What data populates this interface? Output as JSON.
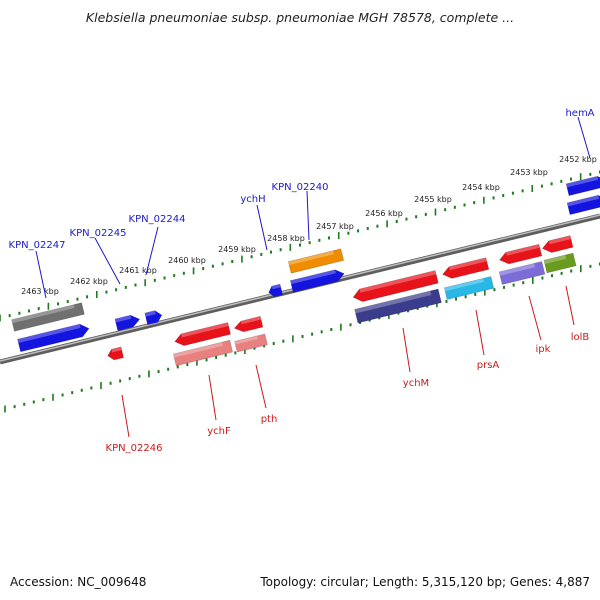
{
  "title": "Klebsiella pneumoniae subsp. pneumoniae MGH 78578, complete ...",
  "footer": {
    "accession": "Accession: NC_009648",
    "summary": "Topology: circular; Length: 5,315,120 bp; Genes: 4,887"
  },
  "colors": {
    "backbone": "#8a8a8a",
    "tick": "#1f7a1f",
    "label_blue": "#1a1acc",
    "label_red": "#cc1a1a",
    "gene_red": "#e8121b",
    "gene_pink": "#e88080",
    "gene_blue": "#1414e0",
    "gene_navy": "#3c3c8c",
    "gene_gray": "#707070",
    "gene_orange": "#f08c00",
    "gene_cyan": "#28b8e8",
    "gene_violet": "#7c6cd8",
    "gene_olive": "#6a9a1e"
  },
  "scale": {
    "unit": "kbp",
    "labels": [
      "2452 kbp",
      "2453 kbp",
      "2454 kbp",
      "2455 kbp",
      "2456 kbp",
      "2457 kbp",
      "2458 kbp",
      "2459 kbp",
      "2460 kbp",
      "2461 kbp",
      "2462 kbp",
      "2463 kbp"
    ]
  },
  "genes_upper": [
    {
      "name": "hemA",
      "color": "gene_blue"
    },
    {
      "name": "KPN_02240",
      "color": "gene_blue"
    },
    {
      "name": "ychH",
      "color": "gene_blue"
    },
    {
      "name": "KPN_02244",
      "color": "gene_blue"
    },
    {
      "name": "KPN_02245",
      "color": "gene_blue"
    },
    {
      "name": "KPN_02247",
      "color": "gene_blue"
    }
  ],
  "genes_lower": [
    {
      "name": "lolB",
      "color": "gene_red"
    },
    {
      "name": "ipk",
      "color": "gene_red"
    },
    {
      "name": "prsA",
      "color": "gene_red"
    },
    {
      "name": "ychM",
      "color": "gene_red"
    },
    {
      "name": "pth",
      "color": "gene_red"
    },
    {
      "name": "ychF",
      "color": "gene_red"
    },
    {
      "name": "KPN_02246",
      "color": "gene_red"
    }
  ]
}
